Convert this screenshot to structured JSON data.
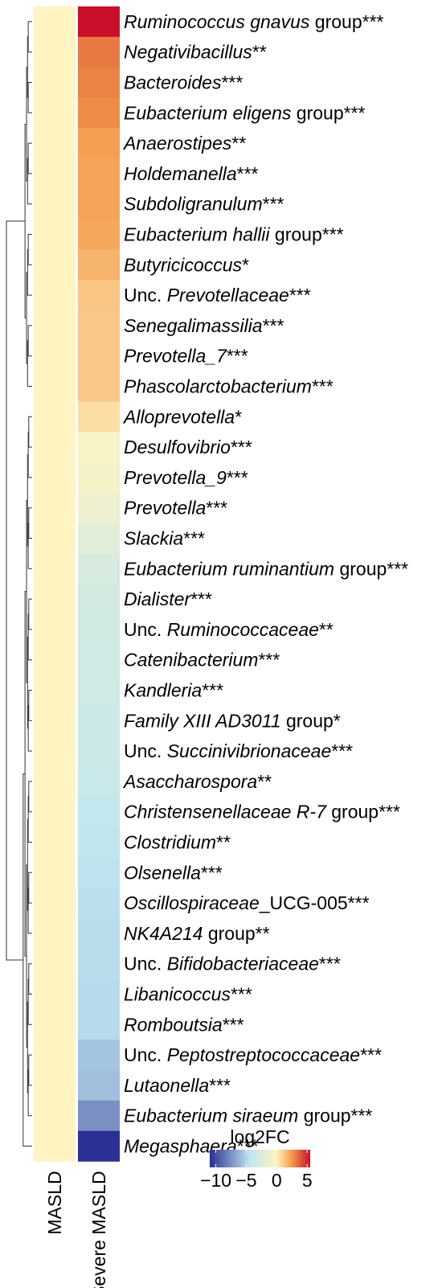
{
  "chart_data": {
    "type": "heatmap",
    "columns": [
      "MASLD",
      "Severe MASLD"
    ],
    "rows": [
      {
        "label": "Ruminococcus gnavus group***",
        "fc": [
          0,
          5.5
        ]
      },
      {
        "label": "Negativibacillus**",
        "fc": [
          0,
          3.2
        ]
      },
      {
        "label": "Bacteroides***",
        "fc": [
          0,
          3.0
        ]
      },
      {
        "label": "Eubacterium eligens group***",
        "fc": [
          0,
          2.8
        ]
      },
      {
        "label": "Anaerostipes**",
        "fc": [
          0,
          2.3
        ]
      },
      {
        "label": "Holdemanella***",
        "fc": [
          0,
          2.2
        ]
      },
      {
        "label": "Subdoligranulum***",
        "fc": [
          0,
          2.2
        ]
      },
      {
        "label": "Eubacterium hallii group***",
        "fc": [
          0,
          2.1
        ]
      },
      {
        "label": "Butyricicoccus*",
        "fc": [
          0,
          1.8
        ]
      },
      {
        "label": "Unc. Prevotellaceae***",
        "fc": [
          0,
          1.3
        ]
      },
      {
        "label": "Senegalimassilia***",
        "fc": [
          0,
          1.2
        ]
      },
      {
        "label": "Prevotella_7***",
        "fc": [
          0,
          1.2
        ]
      },
      {
        "label": "Phascolarctobacterium***",
        "fc": [
          0,
          1.2
        ]
      },
      {
        "label": "Alloprevotella*",
        "fc": [
          0,
          0.6
        ]
      },
      {
        "label": "Desulfovibrio***",
        "fc": [
          0,
          -0.5
        ]
      },
      {
        "label": "Prevotella_9***",
        "fc": [
          0,
          -0.6
        ]
      },
      {
        "label": "Prevotella***",
        "fc": [
          0,
          -1.2
        ]
      },
      {
        "label": "Slackia***",
        "fc": [
          0,
          -2.0
        ]
      },
      {
        "label": "Eubacterium ruminantium group***",
        "fc": [
          0,
          -2.7
        ]
      },
      {
        "label": "Dialister***",
        "fc": [
          0,
          -3.0
        ]
      },
      {
        "label": "Unc. Ruminococcaceae**",
        "fc": [
          0,
          -3.2
        ]
      },
      {
        "label": "Catenibacterium***",
        "fc": [
          0,
          -3.3
        ]
      },
      {
        "label": "Kandleria***",
        "fc": [
          0,
          -3.4
        ]
      },
      {
        "label": "Family XIII AD3011 group*",
        "fc": [
          0,
          -3.5
        ]
      },
      {
        "label": "Unc. Succinivibrionaceae***",
        "fc": [
          0,
          -3.6
        ]
      },
      {
        "label": "Asaccharospora**",
        "fc": [
          0,
          -3.7
        ]
      },
      {
        "label": "Christensenellaceae R-7 group***",
        "fc": [
          0,
          -4.2
        ]
      },
      {
        "label": "Clostridium**",
        "fc": [
          0,
          -4.3
        ]
      },
      {
        "label": "Olsenella***",
        "fc": [
          0,
          -4.5
        ]
      },
      {
        "label": "Oscillospiraceae_UCG-005***",
        "fc": [
          0,
          -4.6
        ]
      },
      {
        "label": "NK4A214 group**",
        "fc": [
          0,
          -4.7
        ]
      },
      {
        "label": "Unc. Bifidobacteriaceae***",
        "fc": [
          0,
          -4.7
        ]
      },
      {
        "label": "Libanicoccus***",
        "fc": [
          0,
          -4.8
        ]
      },
      {
        "label": "Romboutsia***",
        "fc": [
          0,
          -4.8
        ]
      },
      {
        "label": "Unc. Peptostreptococcaceae***",
        "fc": [
          0,
          -5.6
        ]
      },
      {
        "label": "Lutaonella***",
        "fc": [
          0,
          -5.8
        ]
      },
      {
        "label": "Eubacterium siraeum group***",
        "fc": [
          0,
          -7.5
        ]
      },
      {
        "label": "Megasphaera***",
        "fc": [
          0,
          -11.0
        ]
      }
    ],
    "legend": {
      "title": "log2FC",
      "ticks": [
        -10,
        -5,
        0,
        5
      ],
      "tick_labels": [
        "−10",
        "−5",
        "0",
        "5"
      ],
      "range": [
        -11,
        5.5
      ],
      "colors": {
        "low": "#2c2f93",
        "mid_low": "#bfe6f0",
        "mid": "#fff4c2",
        "mid_high": "#f39a4a",
        "high": "#c90f2a"
      }
    }
  }
}
